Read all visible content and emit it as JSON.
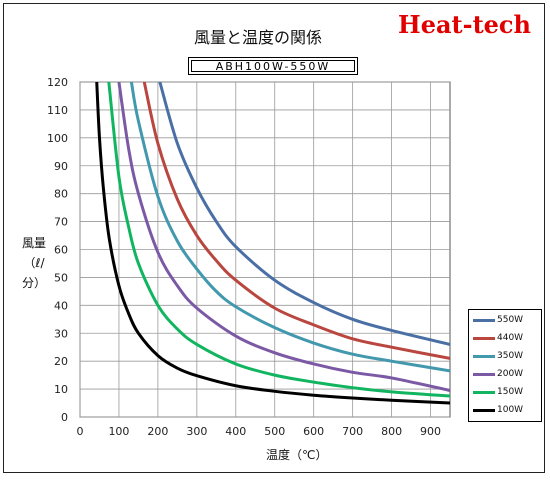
{
  "brand": "Heat-tech",
  "chart_data": {
    "type": "line",
    "title": "風量と温度の関係",
    "subtitle": "ABH100W-550W",
    "xlabel": "温度（℃）",
    "ylabel": "風量\n（ℓ/分）",
    "xlim": [
      0,
      950
    ],
    "ylim": [
      0,
      120
    ],
    "xticks": [
      0,
      100,
      200,
      300,
      400,
      500,
      600,
      700,
      800,
      900
    ],
    "yticks": [
      0,
      10,
      20,
      30,
      40,
      50,
      60,
      70,
      80,
      90,
      100,
      110,
      120
    ],
    "grid": true,
    "legend_position": "bottom-right",
    "series": [
      {
        "name": "550W",
        "color": "#4a6fa5",
        "x": [
          205,
          250,
          300,
          350,
          400,
          500,
          600,
          700,
          800,
          950
        ],
        "y": [
          120,
          98,
          82,
          70,
          61,
          49,
          41,
          35,
          31,
          26
        ]
      },
      {
        "name": "440W",
        "color": "#b9473f",
        "x": [
          165,
          200,
          250,
          300,
          350,
          400,
          500,
          600,
          700,
          800,
          950
        ],
        "y": [
          120,
          98,
          78,
          65,
          56,
          49,
          39,
          33,
          28,
          25,
          21
        ]
      },
      {
        "name": "350W",
        "color": "#4298ad",
        "x": [
          132,
          150,
          200,
          250,
          300,
          350,
          400,
          500,
          600,
          700,
          800,
          950
        ],
        "y": [
          120,
          106,
          79,
          63,
          53,
          45,
          39.5,
          32,
          26.5,
          22.5,
          20,
          16.5
        ]
      },
      {
        "name": "200W",
        "color": "#7b59a5",
        "x": [
          100,
          125,
          150,
          200,
          250,
          300,
          400,
          500,
          600,
          700,
          800,
          950
        ],
        "y": [
          120,
          96,
          80,
          59,
          47,
          39,
          29,
          23,
          19,
          16,
          14,
          9.5
        ]
      },
      {
        "name": "150W",
        "color": "#11b560",
        "x": [
          74,
          100,
          125,
          150,
          200,
          250,
          300,
          400,
          500,
          600,
          700,
          800,
          950
        ],
        "y": [
          120,
          86,
          68,
          55,
          40,
          31.5,
          26,
          19,
          15,
          12.5,
          10.5,
          9,
          7.5
        ]
      },
      {
        "name": "100W",
        "color": "#000000",
        "x": [
          43,
          50,
          60,
          75,
          100,
          125,
          150,
          200,
          250,
          300,
          400,
          500,
          600,
          700,
          800,
          950
        ],
        "y": [
          120,
          100,
          82,
          64,
          47,
          37,
          30,
          22,
          17.5,
          14.8,
          11.2,
          9.2,
          7.8,
          6.8,
          6,
          5
        ]
      }
    ]
  }
}
